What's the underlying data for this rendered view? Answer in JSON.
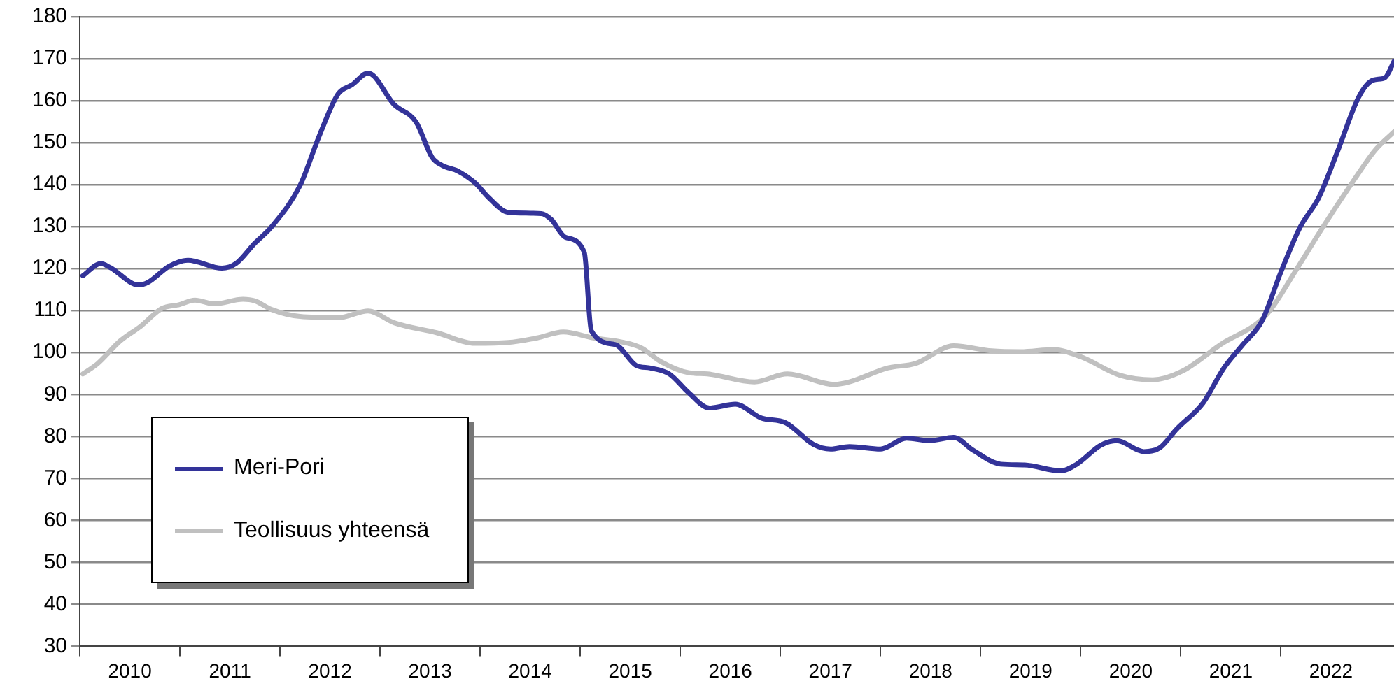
{
  "chart_data": {
    "type": "line",
    "series": [
      {
        "name": "Meri-Pori",
        "color": "#333399",
        "x": [
          2010.03,
          2010.21,
          2010.3,
          2010.59,
          2010.68,
          2010.89,
          2011.08,
          2011.42,
          2011.56,
          2011.75,
          2011.91,
          2012.2,
          2012.39,
          2012.58,
          2012.72,
          2012.88,
          2013.14,
          2013.36,
          2013.52,
          2013.62,
          2013.78,
          2013.95,
          2014.09,
          2014.28,
          2014.61,
          2014.71,
          2014.85,
          2015.04,
          2015.11,
          2015.35,
          2015.56,
          2015.7,
          2015.89,
          2016.08,
          2016.29,
          2016.55,
          2016.81,
          2017.05,
          2017.33,
          2017.5,
          2017.69,
          2018.0,
          2018.26,
          2018.49,
          2018.73,
          2018.92,
          2019.2,
          2019.44,
          2019.8,
          2019.96,
          2020.2,
          2020.36,
          2020.63,
          2020.79,
          2020.96,
          2021.22,
          2021.43,
          2021.62,
          2021.81,
          2022.0,
          2022.19,
          2022.38,
          2022.57,
          2022.78,
          2022.92,
          2023.04,
          2023.13
        ],
        "values": [
          118.3,
          121.2,
          120.3,
          116.1,
          116.7,
          120.5,
          122.0,
          120.1,
          121.2,
          126.1,
          129.8,
          139.8,
          151.5,
          161.6,
          163.8,
          166.6,
          159.1,
          154.9,
          146.5,
          144.6,
          143.2,
          140.4,
          136.8,
          133.4,
          133.1,
          131.7,
          127.5,
          123.9,
          105.2,
          101.9,
          96.9,
          96.3,
          94.9,
          90.5,
          86.8,
          87.7,
          84.4,
          83.3,
          78.1,
          77.0,
          77.6,
          77.0,
          79.6,
          79.0,
          79.8,
          76.8,
          73.4,
          73.2,
          71.8,
          73.4,
          77.9,
          79.0,
          76.4,
          77.3,
          81.8,
          87.9,
          96.3,
          101.9,
          107.5,
          119.2,
          129.8,
          137.0,
          148.2,
          161.0,
          164.9,
          165.5,
          169.4
        ]
      },
      {
        "name": "Teollisuus yhteensä",
        "color": "#c0c0c0",
        "x": [
          2010.03,
          2010.18,
          2010.4,
          2010.61,
          2010.82,
          2010.99,
          2011.15,
          2011.34,
          2011.63,
          2011.75,
          2011.91,
          2012.2,
          2012.58,
          2012.88,
          2013.14,
          2013.57,
          2013.95,
          2014.28,
          2014.57,
          2014.83,
          2015.13,
          2015.44,
          2015.61,
          2015.8,
          2016.08,
          2016.27,
          2016.74,
          2017.07,
          2017.54,
          2017.69,
          2018.07,
          2018.35,
          2018.73,
          2019.11,
          2019.4,
          2019.73,
          2020.01,
          2020.39,
          2020.72,
          2021.01,
          2021.43,
          2021.76,
          2021.9,
          2022.14,
          2022.43,
          2022.71,
          2022.94,
          2023.13
        ],
        "values": [
          94.9,
          97.4,
          102.7,
          106.3,
          110.5,
          111.4,
          112.5,
          111.6,
          112.7,
          112.3,
          110.3,
          108.6,
          108.3,
          109.9,
          107.1,
          104.7,
          102.2,
          102.4,
          103.5,
          104.9,
          103.5,
          102.4,
          101.1,
          97.9,
          95.2,
          94.9,
          93.0,
          94.9,
          92.4,
          93.0,
          96.3,
          97.4,
          101.6,
          100.4,
          100.2,
          100.7,
          98.9,
          94.6,
          93.5,
          95.5,
          102.4,
          106.9,
          110.3,
          119.2,
          130.3,
          140.4,
          148.2,
          152.6
        ]
      }
    ],
    "xlim": [
      2010,
      2023.13
    ],
    "xticks": [
      {
        "value": 2010,
        "label": null
      },
      {
        "value": 2010.5,
        "label": "2010"
      },
      {
        "value": 2011,
        "label": null
      },
      {
        "value": 2011.5,
        "label": "2011"
      },
      {
        "value": 2012,
        "label": null
      },
      {
        "value": 2012.5,
        "label": "2012"
      },
      {
        "value": 2013,
        "label": null
      },
      {
        "value": 2013.5,
        "label": "2013"
      },
      {
        "value": 2014,
        "label": null
      },
      {
        "value": 2014.5,
        "label": "2014"
      },
      {
        "value": 2015,
        "label": null
      },
      {
        "value": 2015.5,
        "label": "2015"
      },
      {
        "value": 2016,
        "label": null
      },
      {
        "value": 2016.5,
        "label": "2016"
      },
      {
        "value": 2017,
        "label": null
      },
      {
        "value": 2017.5,
        "label": "2017"
      },
      {
        "value": 2018,
        "label": null
      },
      {
        "value": 2018.5,
        "label": "2018"
      },
      {
        "value": 2019,
        "label": null
      },
      {
        "value": 2019.5,
        "label": "2019"
      },
      {
        "value": 2020,
        "label": null
      },
      {
        "value": 2020.5,
        "label": "2020"
      },
      {
        "value": 2021,
        "label": null
      },
      {
        "value": 2021.5,
        "label": "2021"
      },
      {
        "value": 2022,
        "label": null
      },
      {
        "value": 2022.5,
        "label": "2022"
      }
    ],
    "ylim": [
      30,
      180
    ],
    "yticks": [
      30,
      40,
      50,
      60,
      70,
      80,
      90,
      100,
      110,
      120,
      130,
      140,
      150,
      160,
      170,
      180
    ],
    "grid": "y",
    "legend": "bottom left"
  }
}
